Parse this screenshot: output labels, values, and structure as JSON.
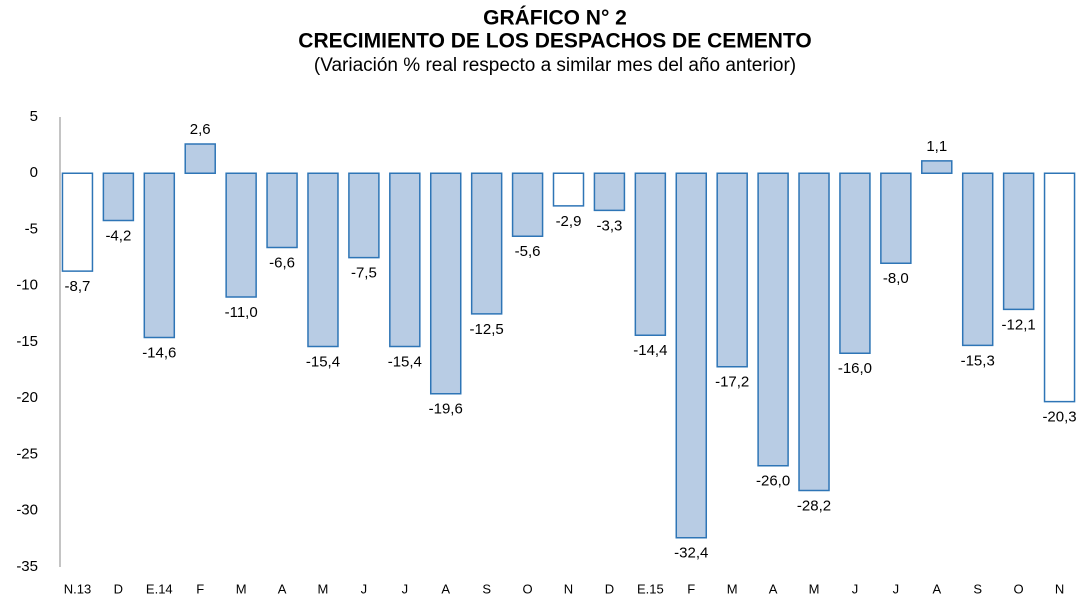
{
  "chart_data": {
    "type": "bar",
    "title": [
      "GRÁFICO N° 2",
      "CRECIMIENTO DE LOS DESPACHOS DE CEMENTO"
    ],
    "subtitle": "(Variación % real respecto a similar mes del año anterior)",
    "categories": [
      "N.13",
      "D",
      "E.14",
      "F",
      "M",
      "A",
      "M",
      "J",
      "J",
      "A",
      "S",
      "O",
      "N",
      "D",
      "E.15",
      "F",
      "M",
      "A",
      "M",
      "J",
      "J",
      "A",
      "S",
      "O",
      "N"
    ],
    "values": [
      -8.7,
      -4.2,
      -14.6,
      2.6,
      -11.0,
      -6.6,
      -15.4,
      -7.5,
      -15.4,
      -19.6,
      -12.5,
      -5.6,
      -2.9,
      -3.3,
      -14.4,
      -32.4,
      -17.2,
      -26.0,
      -28.2,
      -16.0,
      -8.0,
      1.1,
      -15.3,
      -12.1,
      -20.3
    ],
    "value_labels": [
      "-8,7",
      "-4,2",
      "-14,6",
      "2,6",
      "-11,0",
      "-6,6",
      "-15,4",
      "-7,5",
      "-15,4",
      "-19,6",
      "-12,5",
      "-5,6",
      "-2,9",
      "-3,3",
      "-14,4",
      "-32,4",
      "-17,2",
      "-26,0",
      "-28,2",
      "-16,0",
      "-8,0",
      "1,1",
      "-15,3",
      "-12,1",
      "-20,3"
    ],
    "colors": [
      "#ffffff",
      "#b8cce4",
      "#b8cce4",
      "#b8cce4",
      "#b8cce4",
      "#b8cce4",
      "#b8cce4",
      "#b8cce4",
      "#b8cce4",
      "#b8cce4",
      "#b8cce4",
      "#b8cce4",
      "#ffffff",
      "#b8cce4",
      "#b8cce4",
      "#b8cce4",
      "#b8cce4",
      "#b8cce4",
      "#b8cce4",
      "#b8cce4",
      "#b8cce4",
      "#b8cce4",
      "#b8cce4",
      "#b8cce4",
      "#ffffff"
    ],
    "edge_color": "#2e75b6",
    "ylim": [
      -35,
      5
    ],
    "yticks": [
      -35,
      -30,
      -25,
      -20,
      -15,
      -10,
      -5,
      0,
      5
    ],
    "grid": false
  }
}
